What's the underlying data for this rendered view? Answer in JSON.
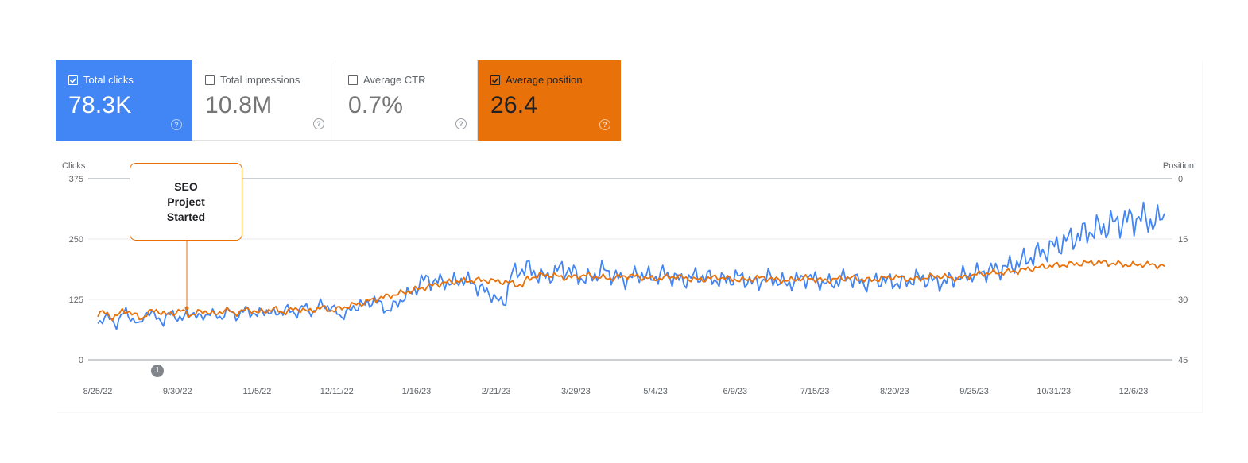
{
  "metrics": {
    "clicks": {
      "label": "Total clicks",
      "value": "78.3K",
      "checked": true,
      "color": "#4285f4"
    },
    "impressions": {
      "label": "Total impressions",
      "value": "10.8M",
      "checked": false
    },
    "ctr": {
      "label": "Average CTR",
      "value": "0.7%",
      "checked": false
    },
    "position": {
      "label": "Average position",
      "value": "26.4",
      "checked": true,
      "color": "#e8710a"
    },
    "help_icon": "help-circle-icon"
  },
  "callout": {
    "text": "SEO Project Started"
  },
  "annotation": {
    "label": "1"
  },
  "chart_data": {
    "type": "line",
    "grid": true,
    "left_axis": {
      "label": "Clicks",
      "ticks": [
        "375",
        "250",
        "125",
        "0"
      ],
      "range": [
        0,
        375
      ]
    },
    "right_axis": {
      "label": "Position",
      "ticks": [
        "0",
        "15",
        "30",
        "45"
      ],
      "range": [
        0,
        45
      ],
      "inverted": true
    },
    "x_ticks": [
      "8/25/22",
      "9/30/22",
      "11/5/22",
      "12/11/22",
      "1/16/23",
      "2/21/23",
      "3/29/23",
      "5/4/23",
      "6/9/23",
      "7/15/23",
      "8/20/23",
      "9/25/23",
      "10/31/23",
      "12/6/23"
    ],
    "x_start": "2022-08-25",
    "x_end": "2023-12-20",
    "series": [
      {
        "name": "Total clicks",
        "axis": "left",
        "color": "#4285f4",
        "values": [
          75,
          85,
          90,
          80,
          72,
          92,
          98,
          88,
          80,
          70,
          95,
          100,
          90,
          85,
          78,
          92,
          96,
          88,
          82,
          95,
          100,
          90,
          86,
          94,
          98,
          92,
          88,
          95,
          102,
          94,
          90,
          100,
          105,
          96,
          92,
          100,
          102,
          98,
          94,
          100,
          106,
          100,
          96,
          102,
          110,
          104,
          98,
          108,
          118,
          110,
          104,
          100,
          90,
          95,
          105,
          110,
          115,
          112,
          120,
          125,
          115,
          108,
          102,
          110,
          118,
          128,
          134,
          140,
          150,
          160,
          168,
          165,
          160,
          162,
          164,
          158,
          160,
          165,
          168,
          162,
          160,
          150,
          145,
          140,
          135,
          125,
          118,
          124,
          175,
          180,
          185,
          190,
          188,
          182,
          176,
          170,
          172,
          178,
          184,
          190,
          188,
          182,
          176,
          170,
          166,
          170,
          176,
          182,
          186,
          180,
          174,
          170,
          166,
          168,
          172,
          176,
          178,
          174,
          170,
          172,
          176,
          178,
          174,
          170,
          166,
          164,
          168,
          172,
          174,
          172,
          170,
          168,
          166,
          164,
          166,
          168,
          170,
          172,
          168,
          162,
          158,
          162,
          166,
          170,
          168,
          164,
          160,
          158,
          160,
          164,
          168,
          170,
          168,
          166,
          162,
          160,
          158,
          160,
          164,
          168,
          172,
          168,
          164,
          160,
          158,
          160,
          164,
          166,
          164,
          162,
          160,
          158,
          160,
          164,
          168,
          170,
          168,
          166,
          164,
          162,
          160,
          162,
          166,
          170,
          172,
          174,
          176,
          178,
          180,
          182,
          184,
          186,
          188,
          190,
          192,
          196,
          200,
          204,
          208,
          212,
          218,
          222,
          226,
          230,
          236,
          240,
          244,
          248,
          252,
          256,
          260,
          264,
          268,
          270,
          272,
          276,
          280,
          284,
          286,
          288,
          290,
          292,
          294,
          292,
          290,
          286,
          284,
          300
        ]
      },
      {
        "name": "Average position",
        "axis": "right",
        "color": "#e8710a",
        "values": [
          33.5,
          33.2,
          33.8,
          34.5,
          34.0,
          33.0,
          32.8,
          33.5,
          34.2,
          34.8,
          33.6,
          33.0,
          32.7,
          33.2,
          33.9,
          33.5,
          33.1,
          32.8,
          33.3,
          33.9,
          33.6,
          33.0,
          32.9,
          33.4,
          33.8,
          33.2,
          32.6,
          32.9,
          33.5,
          33.1,
          32.8,
          32.5,
          32.9,
          33.3,
          33.0,
          32.6,
          32.4,
          32.8,
          33.2,
          32.9,
          32.5,
          32.3,
          32.6,
          33.0,
          32.7,
          32.3,
          32.1,
          32.4,
          32.8,
          32.5,
          32.1,
          31.8,
          31.5,
          31.2,
          31.0,
          30.6,
          30.2,
          29.9,
          29.6,
          29.3,
          29.0,
          28.8,
          28.5,
          28.2,
          27.9,
          27.6,
          27.3,
          27.0,
          26.7,
          26.4,
          26.1,
          25.9,
          25.7,
          25.6,
          25.5,
          25.4,
          25.3,
          25.3,
          25.2,
          25.2,
          25.3,
          25.4,
          25.5,
          25.6,
          25.8,
          26.0,
          26.3,
          26.6,
          24.8,
          24.5,
          24.2,
          24.0,
          23.9,
          24.0,
          24.2,
          24.4,
          24.6,
          24.5,
          24.3,
          24.1,
          24.0,
          24.1,
          24.3,
          24.5,
          24.7,
          24.8,
          24.6,
          24.4,
          24.2,
          24.1,
          24.2,
          24.4,
          24.6,
          24.8,
          24.9,
          24.8,
          24.6,
          24.4,
          24.3,
          24.4,
          24.6,
          24.8,
          25.0,
          25.1,
          25.0,
          24.8,
          24.6,
          24.5,
          24.6,
          24.8,
          25.0,
          25.1,
          25.2,
          25.1,
          24.9,
          24.7,
          24.6,
          24.7,
          24.9,
          25.1,
          25.2,
          25.3,
          25.2,
          25.0,
          24.8,
          24.7,
          24.8,
          25.0,
          25.2,
          25.3,
          25.2,
          25.0,
          24.8,
          24.7,
          24.6,
          24.7,
          24.9,
          25.1,
          25.2,
          25.1,
          24.9,
          24.7,
          24.5,
          24.4,
          24.5,
          24.7,
          24.9,
          25.0,
          24.9,
          24.7,
          24.5,
          24.3,
          24.2,
          24.3,
          24.5,
          24.7,
          24.8,
          24.6,
          24.3,
          24.0,
          23.8,
          23.6,
          23.5,
          23.4,
          23.4,
          23.3,
          23.2,
          23.1,
          23.0,
          22.8,
          22.6,
          22.4,
          22.2,
          22.0,
          21.8,
          21.7,
          21.6,
          21.5,
          21.4,
          21.3,
          21.2,
          21.1,
          21.0,
          20.9,
          20.8,
          20.8,
          20.9,
          21.0,
          21.1,
          21.2,
          21.3,
          21.4,
          21.5,
          21.4,
          21.3,
          21.3,
          21.4,
          21.5,
          21.7
        ]
      }
    ]
  }
}
